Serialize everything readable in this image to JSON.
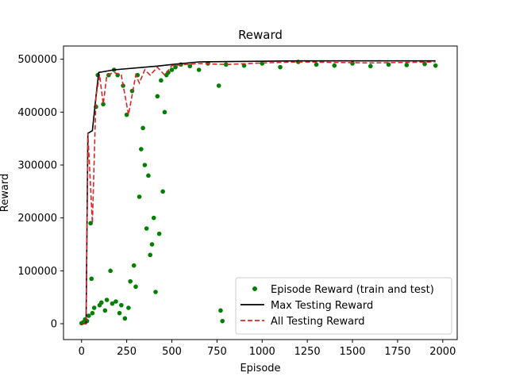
{
  "chart_data": {
    "type": "scatter",
    "title": "Reward",
    "xlabel": "Episode",
    "ylabel": "Reward",
    "xlim": [
      -100,
      2080
    ],
    "ylim": [
      -30000,
      525000
    ],
    "xticks": [
      0,
      250,
      500,
      750,
      1000,
      1250,
      1500,
      1750,
      2000
    ],
    "yticks": [
      0,
      100000,
      200000,
      300000,
      400000,
      500000
    ],
    "xtick_labels": [
      "0",
      "250",
      "500",
      "750",
      "1000",
      "1250",
      "1500",
      "1750",
      "2000"
    ],
    "ytick_labels": [
      "0",
      "100000",
      "200000",
      "300000",
      "400000",
      "500000"
    ],
    "grid": false,
    "legend_position": "lower-right",
    "series": [
      {
        "name": "Episode Reward (train and test)",
        "kind": "scatter",
        "color": "#008000",
        "marker": "circle",
        "points": [
          [
            0,
            1000
          ],
          [
            10,
            3000
          ],
          [
            20,
            8000
          ],
          [
            30,
            5000
          ],
          [
            40,
            15000
          ],
          [
            50,
            190000
          ],
          [
            55,
            85000
          ],
          [
            60,
            20000
          ],
          [
            70,
            30000
          ],
          [
            80,
            410000
          ],
          [
            90,
            470000
          ],
          [
            100,
            35000
          ],
          [
            110,
            40000
          ],
          [
            120,
            415000
          ],
          [
            130,
            25000
          ],
          [
            140,
            45000
          ],
          [
            150,
            470000
          ],
          [
            160,
            100000
          ],
          [
            170,
            38000
          ],
          [
            180,
            480000
          ],
          [
            190,
            42000
          ],
          [
            200,
            470000
          ],
          [
            210,
            20000
          ],
          [
            220,
            35000
          ],
          [
            230,
            450000
          ],
          [
            240,
            10000
          ],
          [
            250,
            395000
          ],
          [
            260,
            30000
          ],
          [
            270,
            80000
          ],
          [
            280,
            440000
          ],
          [
            290,
            110000
          ],
          [
            300,
            70000
          ],
          [
            310,
            470000
          ],
          [
            320,
            240000
          ],
          [
            330,
            330000
          ],
          [
            340,
            370000
          ],
          [
            350,
            300000
          ],
          [
            360,
            180000
          ],
          [
            370,
            280000
          ],
          [
            380,
            130000
          ],
          [
            390,
            150000
          ],
          [
            400,
            200000
          ],
          [
            410,
            60000
          ],
          [
            420,
            430000
          ],
          [
            430,
            170000
          ],
          [
            440,
            460000
          ],
          [
            450,
            250000
          ],
          [
            460,
            400000
          ],
          [
            470,
            470000
          ],
          [
            480,
            475000
          ],
          [
            500,
            480000
          ],
          [
            520,
            485000
          ],
          [
            550,
            490000
          ],
          [
            600,
            487000
          ],
          [
            650,
            480000
          ],
          [
            700,
            492000
          ],
          [
            760,
            450000
          ],
          [
            770,
            25000
          ],
          [
            780,
            5000
          ],
          [
            800,
            490000
          ],
          [
            900,
            488000
          ],
          [
            1000,
            492000
          ],
          [
            1100,
            485000
          ],
          [
            1200,
            495000
          ],
          [
            1300,
            490000
          ],
          [
            1400,
            488000
          ],
          [
            1500,
            492000
          ],
          [
            1600,
            487000
          ],
          [
            1700,
            490000
          ],
          [
            1800,
            489000
          ],
          [
            1900,
            491000
          ],
          [
            1960,
            488000
          ]
        ]
      },
      {
        "name": "Max Testing Reward",
        "kind": "line",
        "color": "#000000",
        "dash": "solid",
        "points": [
          [
            0,
            0
          ],
          [
            25,
            0
          ],
          [
            35,
            360000
          ],
          [
            60,
            365000
          ],
          [
            80,
            430000
          ],
          [
            95,
            475000
          ],
          [
            180,
            480000
          ],
          [
            420,
            487000
          ],
          [
            500,
            490000
          ],
          [
            650,
            495000
          ],
          [
            1200,
            497000
          ],
          [
            1960,
            497000
          ]
        ]
      },
      {
        "name": "All Testing Reward",
        "kind": "line",
        "color": "#d62728",
        "dash": "dashed",
        "points": [
          [
            0,
            0
          ],
          [
            25,
            0
          ],
          [
            35,
            360000
          ],
          [
            60,
            190000
          ],
          [
            80,
            430000
          ],
          [
            100,
            470000
          ],
          [
            120,
            415000
          ],
          [
            140,
            470000
          ],
          [
            180,
            475000
          ],
          [
            220,
            470000
          ],
          [
            260,
            395000
          ],
          [
            300,
            470000
          ],
          [
            320,
            455000
          ],
          [
            350,
            480000
          ],
          [
            380,
            470000
          ],
          [
            420,
            485000
          ],
          [
            460,
            470000
          ],
          [
            500,
            488000
          ],
          [
            650,
            492000
          ],
          [
            800,
            490000
          ],
          [
            1000,
            493000
          ],
          [
            1200,
            495000
          ],
          [
            1400,
            494000
          ],
          [
            1600,
            493000
          ],
          [
            1800,
            494000
          ],
          [
            1960,
            495000
          ]
        ]
      }
    ]
  }
}
